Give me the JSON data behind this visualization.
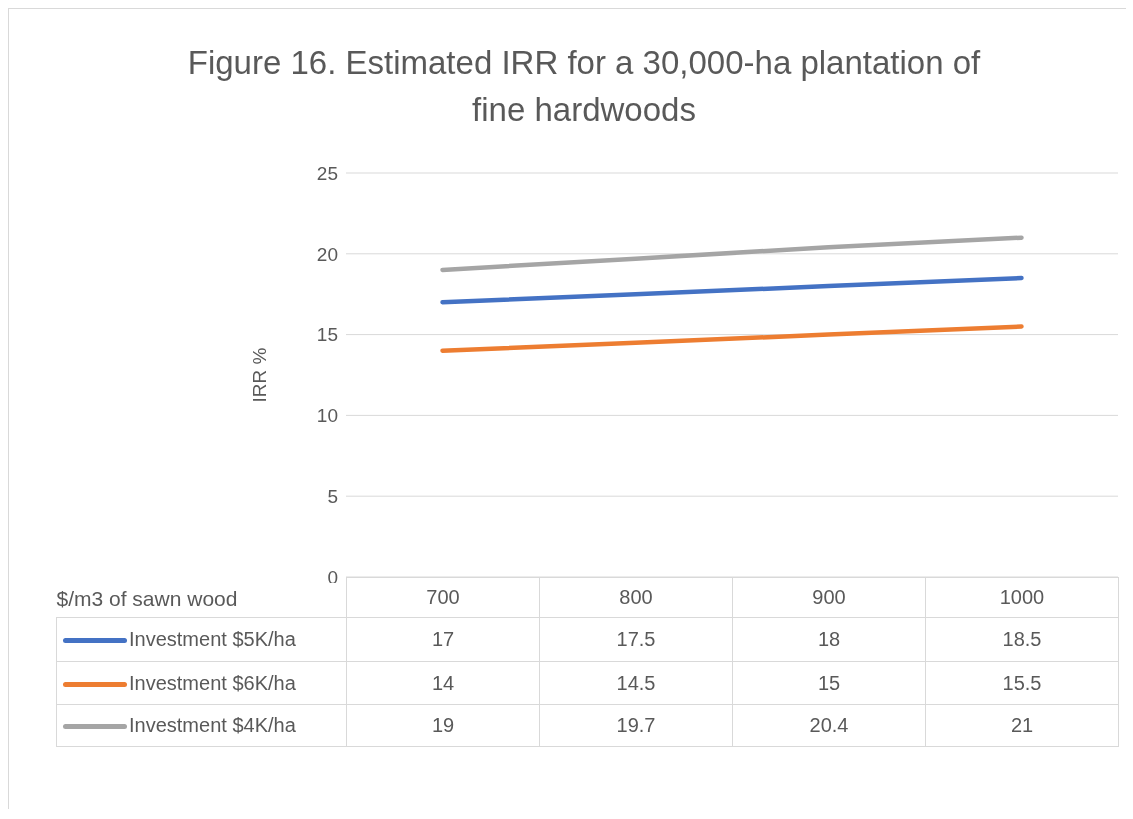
{
  "chart_data": {
    "type": "line",
    "title": "Figure 16. Estimated IRR for a 30,000-ha plantation of fine hardwoods",
    "ylabel": "IRR %",
    "xlabel": "$/m3 of sawn wood",
    "categories": [
      "700",
      "800",
      "900",
      "1000"
    ],
    "series": [
      {
        "name": "Investment $5K/ha",
        "color": "#4472c4",
        "values": [
          17,
          17.5,
          18,
          18.5
        ]
      },
      {
        "name": "Investment $6K/ha",
        "color": "#ed7d31",
        "values": [
          14,
          14.5,
          15,
          15.5
        ]
      },
      {
        "name": "Investment $4K/ha",
        "color": "#a5a5a5",
        "values": [
          19,
          19.7,
          20.4,
          21
        ]
      }
    ],
    "ylim": [
      0,
      25
    ],
    "yticks": [
      0,
      5,
      10,
      15,
      20,
      25
    ],
    "grid": "y",
    "legend": "bottom",
    "data_labels": true,
    "marker": "none",
    "line_style": "solid"
  }
}
